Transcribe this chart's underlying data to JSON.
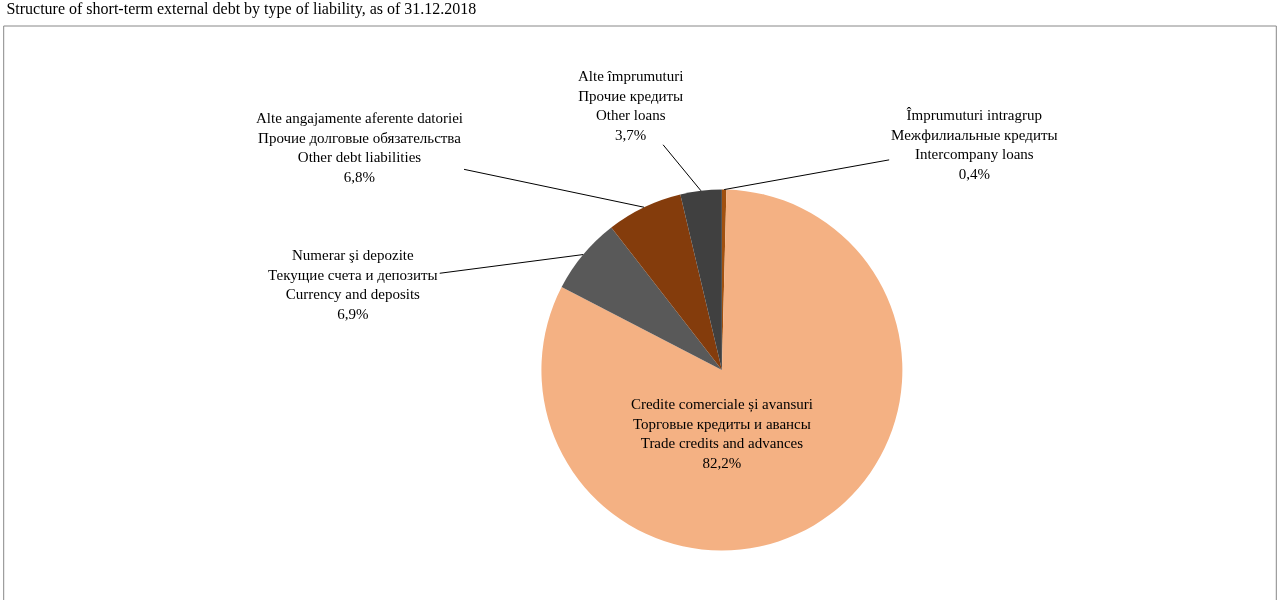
{
  "chart_data": {
    "type": "pie",
    "title": "Structure of short-term external debt by type of liability, as of 31.12.2018",
    "categories": [
      "Împrumuturi intragrup\nМежфилиальные кредиты\nIntercompany loans",
      "Credite comerciale și avansuri\nТорговые кредиты и авансы\nTrade credits and advances",
      "Numerar şi depozite\nТекущие счета и депозиты\nCurrency and deposits",
      "Alte angajamente aferente datoriei\nПрочие долговые обязательства\nOther debt liabilities",
      "Alte împrumuturi\nПрочие кредиты\nOther loans"
    ],
    "values": [
      0.4,
      82.2,
      6.9,
      6.8,
      3.7
    ],
    "value_labels": [
      "0,4%",
      "82,2%",
      "6,9%",
      "6,8%",
      "3,7%"
    ],
    "colors": [
      "#a0500f",
      "#f4b183",
      "#595959",
      "#843c0c",
      "#404040"
    ],
    "legend": false
  }
}
